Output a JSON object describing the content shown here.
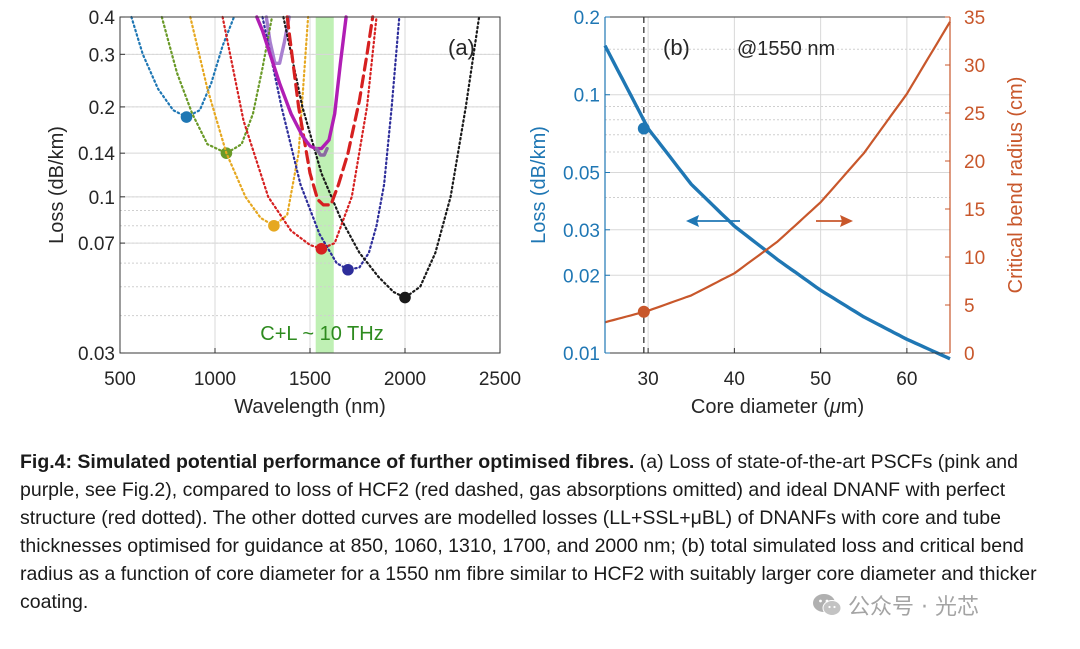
{
  "figure": {
    "panel_a": {
      "label": "(a)",
      "band_label": "C+L ~ 10 THz"
    },
    "panel_b": {
      "label": "(b)",
      "annotation": "@1550 nm"
    }
  },
  "caption": {
    "bold": "Fig.4: Simulated potential performance of further optimised fibres.",
    "text": " (a) Loss of state-of-the-art PSCFs (pink and purple, see Fig.2), compared to loss of HCF2 (red dashed, gas absorptions omitted) and ideal DNANF with perfect structure (red dotted). The other dotted curves are modelled losses (LL+SSL+μBL) of DNANFs with core and tube thicknesses optimised for guidance at 850, 1060, 1310, 1700, and 2000 nm; (b) total simulated loss and critical bend radius as a function of core diameter for a 1550 nm fibre similar to HCF2 with suitably larger core diameter and thicker coating."
  },
  "watermark": {
    "text": "公众号 · 光芯",
    "icon": "wechat-icon"
  },
  "colors": {
    "blue": "#1f77b4",
    "orange": "#c8572b",
    "red": "#d62020",
    "magenta": "#b01eb4",
    "purple": "#a23ab0",
    "green_band": "#bff0b4",
    "band_text": "#2e8b1f"
  },
  "chart_data": [
    {
      "type": "line",
      "title": "(a)",
      "xlabel": "Wavelength (nm)",
      "ylabel": "Loss (dB/km)",
      "xlim": [
        500,
        2500
      ],
      "ylim": [
        0.03,
        0.4
      ],
      "yscale": "log",
      "xticks": [
        500,
        1000,
        1500,
        2000,
        2500
      ],
      "yticks": [
        0.03,
        0.07,
        0.1,
        0.14,
        0.2,
        0.3,
        0.4
      ],
      "ytick_labels": [
        "0.03",
        "0.07",
        "0.1",
        "0.14",
        "0.2",
        "0.3",
        "0.4"
      ],
      "xtick_labels": [
        "500",
        "1000",
        "1500",
        "2000",
        "2500"
      ],
      "band": {
        "x": [
          1530,
          1625
        ],
        "label": "C+L ~ 10 THz"
      },
      "series": [
        {
          "name": "DNANF 850 nm",
          "color": "#1f77b4",
          "style": "dotted",
          "x": [
            560,
            620,
            700,
            780,
            850,
            920,
            980,
            1040,
            1100
          ],
          "y": [
            0.4,
            0.3,
            0.23,
            0.195,
            0.185,
            0.195,
            0.24,
            0.32,
            0.4
          ],
          "marker": {
            "x": 850,
            "y": 0.185
          }
        },
        {
          "name": "DNANF 1060 nm",
          "color": "#6a9a28",
          "style": "dotted",
          "x": [
            720,
            800,
            880,
            960,
            1060,
            1140,
            1200,
            1250,
            1300
          ],
          "y": [
            0.4,
            0.26,
            0.19,
            0.15,
            0.14,
            0.15,
            0.19,
            0.27,
            0.4
          ],
          "marker": {
            "x": 1060,
            "y": 0.14
          }
        },
        {
          "name": "DNANF 1310 nm",
          "color": "#e6a820",
          "style": "dotted",
          "x": [
            870,
            960,
            1060,
            1160,
            1240,
            1310,
            1380,
            1440,
            1490
          ],
          "y": [
            0.4,
            0.23,
            0.14,
            0.1,
            0.085,
            0.08,
            0.087,
            0.14,
            0.4
          ],
          "marker": {
            "x": 1310,
            "y": 0.08
          }
        },
        {
          "name": "Ideal DNANF",
          "color": "#d62020",
          "style": "dotted",
          "x": [
            1040,
            1150,
            1280,
            1400,
            1500,
            1560,
            1630,
            1720,
            1800,
            1850
          ],
          "y": [
            0.4,
            0.18,
            0.1,
            0.077,
            0.069,
            0.067,
            0.07,
            0.1,
            0.2,
            0.4
          ],
          "marker": {
            "x": 1560,
            "y": 0.067
          }
        },
        {
          "name": "DNANF 1700 nm",
          "color": "#2d2d9a",
          "style": "dotted",
          "x": [
            1250,
            1350,
            1450,
            1550,
            1640,
            1700,
            1760,
            1810,
            1850,
            1890,
            1930,
            1970
          ],
          "y": [
            0.4,
            0.2,
            0.11,
            0.075,
            0.06,
            0.057,
            0.058,
            0.065,
            0.08,
            0.11,
            0.2,
            0.4
          ],
          "marker": {
            "x": 1700,
            "y": 0.057
          }
        },
        {
          "name": "DNANF 2000 nm",
          "color": "#1a1a1a",
          "style": "dotted",
          "x": [
            1360,
            1460,
            1560,
            1660,
            1760,
            1860,
            1940,
            2000,
            2080,
            2160,
            2240,
            2320,
            2390
          ],
          "y": [
            0.4,
            0.2,
            0.12,
            0.085,
            0.065,
            0.054,
            0.048,
            0.046,
            0.05,
            0.065,
            0.1,
            0.2,
            0.4
          ],
          "marker": {
            "x": 2000,
            "y": 0.046
          }
        },
        {
          "name": "HCF2",
          "color": "#d62020",
          "style": "dashed",
          "x": [
            1380,
            1440,
            1500,
            1540,
            1570,
            1610,
            1650,
            1700,
            1760,
            1800,
            1830
          ],
          "y": [
            0.4,
            0.2,
            0.12,
            0.098,
            0.094,
            0.094,
            0.11,
            0.14,
            0.21,
            0.3,
            0.4
          ]
        },
        {
          "name": "PSCF (pink)",
          "color": "#b01eb4",
          "style": "solid",
          "x": [
            1220,
            1250,
            1290,
            1340,
            1400,
            1460,
            1500,
            1530,
            1560,
            1600,
            1630,
            1660,
            1690
          ],
          "y": [
            0.4,
            0.36,
            0.3,
            0.24,
            0.19,
            0.16,
            0.148,
            0.145,
            0.145,
            0.155,
            0.19,
            0.28,
            0.4
          ]
        },
        {
          "name": "PSCF (purple)",
          "color": "#a87fd0",
          "style": "solid",
          "x": [
            1270,
            1290,
            1315,
            1340,
            1365,
            1390
          ],
          "y": [
            0.4,
            0.33,
            0.28,
            0.28,
            0.33,
            0.4
          ]
        },
        {
          "name": "PSCF (purple) lower",
          "color": "#8a6ba0",
          "style": "solid",
          "x": [
            1535,
            1555,
            1575,
            1590
          ],
          "y": [
            0.145,
            0.138,
            0.138,
            0.145
          ]
        }
      ]
    },
    {
      "type": "line",
      "title": "(b)",
      "xlabel": "Core diameter (μm)",
      "xlabel_prefix": "Core diameter (",
      "xlabel_mu": "μ",
      "xlabel_suffix": "m)",
      "ylabel": "Loss (dB/km)",
      "y2label": "Critical bend radius (cm)",
      "xlim": [
        25,
        65
      ],
      "ylim": [
        0.01,
        0.2
      ],
      "yscale": "log",
      "y2lim": [
        0,
        35
      ],
      "xticks": [
        30,
        40,
        50,
        60
      ],
      "xtick_labels": [
        "30",
        "40",
        "50",
        "60"
      ],
      "yticks": [
        0.01,
        0.02,
        0.03,
        0.05,
        0.1,
        0.2
      ],
      "ytick_labels": [
        "0.01",
        "0.02",
        "0.03",
        "0.05",
        "0.1",
        "0.2"
      ],
      "y2ticks": [
        0,
        5,
        10,
        15,
        20,
        25,
        30,
        35
      ],
      "y2tick_labels": [
        "0",
        "5",
        "10",
        "15",
        "20",
        "25",
        "30",
        "35"
      ],
      "vline_x": 29.5,
      "series": [
        {
          "name": "Loss",
          "color": "#1f77b4",
          "axis": "left",
          "x": [
            25,
            30,
            35,
            40,
            45,
            50,
            55,
            60,
            65
          ],
          "y": [
            0.155,
            0.074,
            0.045,
            0.031,
            0.023,
            0.0175,
            0.0138,
            0.0113,
            0.0095
          ],
          "marker": {
            "x": 29.5,
            "y": 0.074
          }
        },
        {
          "name": "Critical bend radius",
          "color": "#c8572b",
          "axis": "right",
          "x": [
            25,
            30,
            35,
            40,
            45,
            50,
            55,
            60,
            65
          ],
          "y": [
            3.2,
            4.4,
            6.0,
            8.3,
            11.6,
            15.7,
            20.8,
            27.0,
            34.5
          ],
          "marker": {
            "x": 29.5,
            "y": 4.3
          }
        }
      ]
    }
  ]
}
